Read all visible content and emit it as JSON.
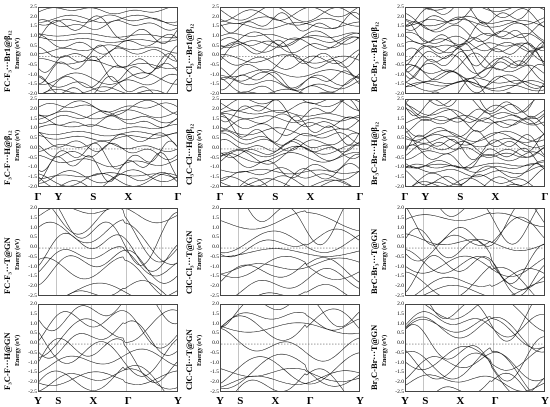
{
  "chart_data": [
    {
      "type": "line",
      "label": "FC-F₃···Br1@β₁₂",
      "ylabel": "Energy (eV)",
      "ylim": [
        -2.0,
        2.5
      ],
      "yticks": [
        "2.5",
        "2.0",
        "1.5",
        "1.0",
        "0.5",
        "0.0",
        "-0.5",
        "-1.0",
        "-1.5",
        "-2.0"
      ],
      "kpath": [
        "Γ",
        "Y",
        "S",
        "X",
        "Γ"
      ],
      "fermi_level": 0,
      "series_count": 18
    },
    {
      "type": "line",
      "label": "ClC-Cl₃···Br1@β₁₂",
      "ylabel": "Energy (eV)",
      "ylim": [
        -2.0,
        2.5
      ],
      "yticks": [
        "2.5",
        "2.0",
        "1.5",
        "1.0",
        "0.5",
        "0.0",
        "-0.5",
        "-1.0",
        "-1.5",
        "-2.0"
      ],
      "kpath": [
        "Γ",
        "Y",
        "S",
        "X",
        "Γ"
      ],
      "fermi_level": 0,
      "series_count": 20
    },
    {
      "type": "line",
      "label": "BrC-Br₃···Br1@β₁₂",
      "ylabel": "Energy (eV)",
      "ylim": [
        -2.0,
        2.5
      ],
      "yticks": [
        "2.5",
        "2.0",
        "1.5",
        "1.0",
        "0.5",
        "0.0",
        "-0.5",
        "-1.0",
        "-1.5",
        "-2.0"
      ],
      "kpath": [
        "Γ",
        "Y",
        "S",
        "X",
        "Γ"
      ],
      "fermi_level": 0,
      "series_count": 24
    },
    {
      "type": "line",
      "label": "F₃C-F···H@β₁₂",
      "ylabel": "Energy (eV)",
      "ylim": [
        -2.0,
        2.5
      ],
      "yticks": [
        "2.5",
        "2.0",
        "1.5",
        "1.0",
        "0.5",
        "0.0",
        "-0.5",
        "-1.0",
        "-1.5",
        "-2.0"
      ],
      "kpath": [
        "Γ",
        "Y",
        "S",
        "X",
        "Γ"
      ],
      "fermi_level": 0,
      "series_count": 18
    },
    {
      "type": "line",
      "label": "Cl₃C-Cl···H@β₁₂",
      "ylabel": "Energy (eV)",
      "ylim": [
        -2.0,
        2.5
      ],
      "yticks": [
        "2.5",
        "2.0",
        "1.5",
        "1.0",
        "0.5",
        "0.0",
        "-0.5",
        "-1.0",
        "-1.5",
        "-2.0"
      ],
      "kpath": [
        "Γ",
        "Y",
        "S",
        "X",
        "Γ"
      ],
      "fermi_level": 0,
      "series_count": 22
    },
    {
      "type": "line",
      "label": "Br₃C-Br···H@β₁₂",
      "ylabel": "Energy (eV)",
      "ylim": [
        -2.0,
        2.5
      ],
      "yticks": [
        "2.5",
        "2.0",
        "1.5",
        "1.0",
        "0.5",
        "0.0",
        "-0.5",
        "-1.0",
        "-1.5",
        "-2.0"
      ],
      "kpath": [
        "Γ",
        "Y",
        "S",
        "X",
        "Γ"
      ],
      "fermi_level": 0,
      "series_count": 24
    },
    {
      "type": "line",
      "label": "FC-F₃···T@GN",
      "ylabel": "Energy (eV)",
      "ylim": [
        -2.5,
        2.0
      ],
      "yticks": [
        "2.0",
        "1.5",
        "1.0",
        "0.5",
        "0.0",
        "-0.5",
        "-1.0",
        "-1.5",
        "-2.0",
        "-2.5"
      ],
      "kpath": [
        "Y",
        "S",
        "X",
        "Γ",
        "Y"
      ],
      "fermi_level": 0,
      "series_count": 10
    },
    {
      "type": "line",
      "label": "ClC-Cl₃···T@GN",
      "ylabel": "Energy (eV)",
      "ylim": [
        -2.5,
        2.0
      ],
      "yticks": [
        "2.0",
        "1.5",
        "1.0",
        "0.5",
        "0.0",
        "-0.5",
        "-1.0",
        "-1.5",
        "-2.0",
        "-2.5"
      ],
      "kpath": [
        "Y",
        "S",
        "X",
        "Γ",
        "Y"
      ],
      "fermi_level": 0,
      "series_count": 10
    },
    {
      "type": "line",
      "label": "BrC-Br₃···T@GN",
      "ylabel": "Energy (eV)",
      "ylim": [
        -2.5,
        2.0
      ],
      "yticks": [
        "2.0",
        "1.5",
        "1.0",
        "0.5",
        "0.0",
        "-0.5",
        "-1.0",
        "-1.5",
        "-2.0",
        "-2.5"
      ],
      "kpath": [
        "Y",
        "S",
        "X",
        "Γ",
        "Y"
      ],
      "fermi_level": 0,
      "series_count": 12
    },
    {
      "type": "line",
      "label": "F₃C-F···H@GN",
      "ylabel": "Energy (eV)",
      "ylim": [
        -2.5,
        2.0
      ],
      "yticks": [
        "2.0",
        "1.5",
        "1.0",
        "0.5",
        "0.0",
        "-0.5",
        "-1.0",
        "-1.5",
        "-2.0",
        "-2.5"
      ],
      "kpath": [
        "Y",
        "S",
        "X",
        "Γ",
        "Y"
      ],
      "fermi_level": 0,
      "series_count": 10
    },
    {
      "type": "line",
      "label": "ClC-Cl···T@GN",
      "ylabel": "Energy (eV)",
      "ylim": [
        -2.5,
        2.0
      ],
      "yticks": [
        "2.0",
        "1.5",
        "1.0",
        "0.5",
        "0.0",
        "-0.5",
        "-1.0",
        "-1.5",
        "-2.0",
        "-2.5"
      ],
      "kpath": [
        "Y",
        "S",
        "X",
        "Γ",
        "Y"
      ],
      "fermi_level": 0,
      "series_count": 10
    },
    {
      "type": "line",
      "label": "Br₃C-Br···T@GN",
      "ylabel": "Energy (eV)",
      "ylim": [
        -2.5,
        2.0
      ],
      "yticks": [
        "2.0",
        "1.5",
        "1.0",
        "0.5",
        "0.0",
        "-0.5",
        "-1.0",
        "-1.5",
        "-2.0",
        "-2.5"
      ],
      "kpath": [
        "Y",
        "S",
        "X",
        "Γ",
        "Y"
      ],
      "fermi_level": 0,
      "series_count": 12
    }
  ],
  "colors": {
    "band": "#111111",
    "grid": "#8a8a8a",
    "fermi": "#666666",
    "frame": "#444444"
  }
}
